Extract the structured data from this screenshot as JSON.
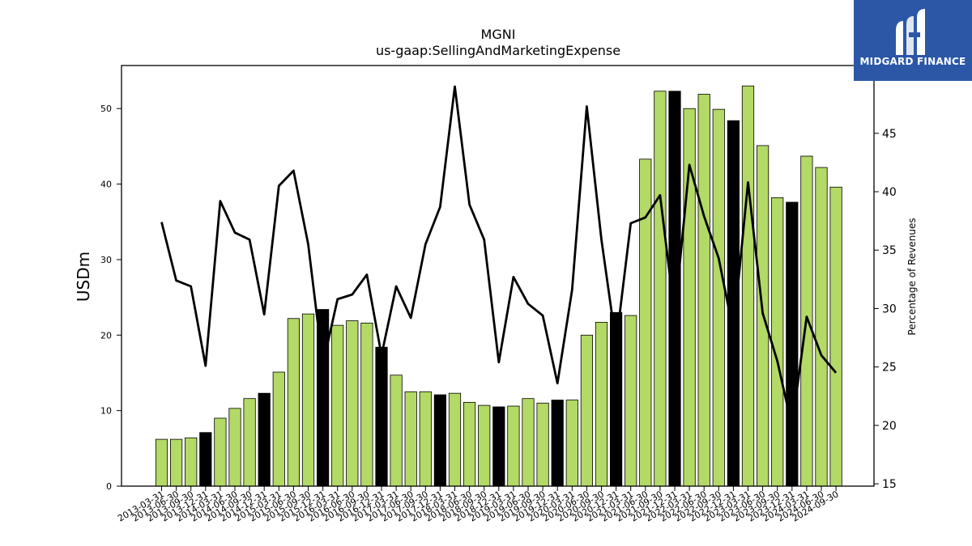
{
  "chart_data": {
    "type": "bar",
    "title": "MGNI",
    "subtitle": "us-gaap:SellingAndMarketingExpense",
    "ylabel": "USDm",
    "y2label": "Percentage of Revenues",
    "ylim": [
      0,
      55.7
    ],
    "y2lim": [
      14.8,
      50.8
    ],
    "yticks": [
      0,
      10,
      20,
      30,
      40,
      50
    ],
    "y2ticks": [
      15,
      20,
      25,
      30,
      35,
      40,
      45
    ],
    "grid": false,
    "categories": [
      "2013-03-31",
      "2013-06-30",
      "2013-09-30",
      "2013-12-31",
      "2014-03-31",
      "2014-06-30",
      "2014-09-30",
      "2014-12-31",
      "2015-03-31",
      "2015-06-30",
      "2015-09-30",
      "2015-12-31",
      "2016-03-31",
      "2016-06-30",
      "2016-09-30",
      "2016-12-31",
      "2017-03-31",
      "2017-06-30",
      "2017-09-30",
      "2017-12-31",
      "2018-03-31",
      "2018-06-30",
      "2018-09-30",
      "2018-12-31",
      "2019-03-31",
      "2019-06-30",
      "2019-09-30",
      "2019-12-31",
      "2020-03-31",
      "2020-06-30",
      "2020-09-30",
      "2020-12-31",
      "2021-03-31",
      "2021-06-30",
      "2021-09-30",
      "2021-12-31",
      "2022-03-31",
      "2022-06-30",
      "2022-09-30",
      "2022-12-31",
      "2023-03-31",
      "2023-06-30",
      "2023-09-30",
      "2023-12-31",
      "2024-03-31",
      "2024-06-30",
      "2024-09-30"
    ],
    "series": [
      {
        "kind": "bar",
        "axis": "left",
        "values": [
          6.2,
          6.2,
          6.4,
          7.1,
          9.0,
          10.3,
          11.6,
          12.3,
          15.1,
          22.2,
          22.8,
          23.4,
          21.3,
          21.9,
          21.6,
          18.4,
          14.7,
          12.5,
          12.5,
          12.1,
          12.3,
          11.1,
          10.7,
          10.5,
          10.6,
          11.6,
          11.0,
          11.4,
          11.4,
          20.0,
          21.7,
          23.0,
          22.6,
          43.3,
          52.3,
          52.3,
          50.0,
          51.9,
          49.9,
          48.4,
          53.0,
          45.1,
          38.2,
          37.6,
          43.7,
          42.2,
          39.6
        ],
        "quarter_end_flags": [
          false,
          false,
          false,
          true,
          false,
          false,
          false,
          true,
          false,
          false,
          false,
          true,
          false,
          false,
          false,
          true,
          false,
          false,
          false,
          true,
          false,
          false,
          false,
          true,
          false,
          false,
          false,
          true,
          false,
          false,
          false,
          true,
          false,
          false,
          false,
          true,
          false,
          false,
          false,
          true,
          false,
          false,
          false,
          true,
          false,
          false,
          false
        ]
      },
      {
        "kind": "line",
        "axis": "right",
        "values": [
          37.4,
          32.4,
          31.9,
          25.1,
          39.2,
          36.5,
          35.9,
          29.5,
          40.5,
          41.8,
          35.5,
          25.2,
          30.8,
          31.2,
          32.9,
          26.0,
          31.9,
          29.2,
          35.5,
          38.7,
          49.0,
          38.9,
          35.9,
          25.4,
          32.7,
          30.4,
          29.4,
          23.6,
          31.6,
          47.3,
          35.9,
          27.0,
          37.3,
          37.8,
          39.7,
          29.4,
          42.3,
          37.9,
          34.3,
          28.0,
          40.8,
          29.6,
          25.5,
          19.9,
          29.3,
          26.0,
          24.5
        ]
      }
    ],
    "colors": {
      "bar": "#b3d966",
      "bar_year_end": "#000000",
      "line": "#000000"
    }
  },
  "logo": {
    "text": "MIDGARD FINANCE",
    "bg": "#2b57a6"
  }
}
